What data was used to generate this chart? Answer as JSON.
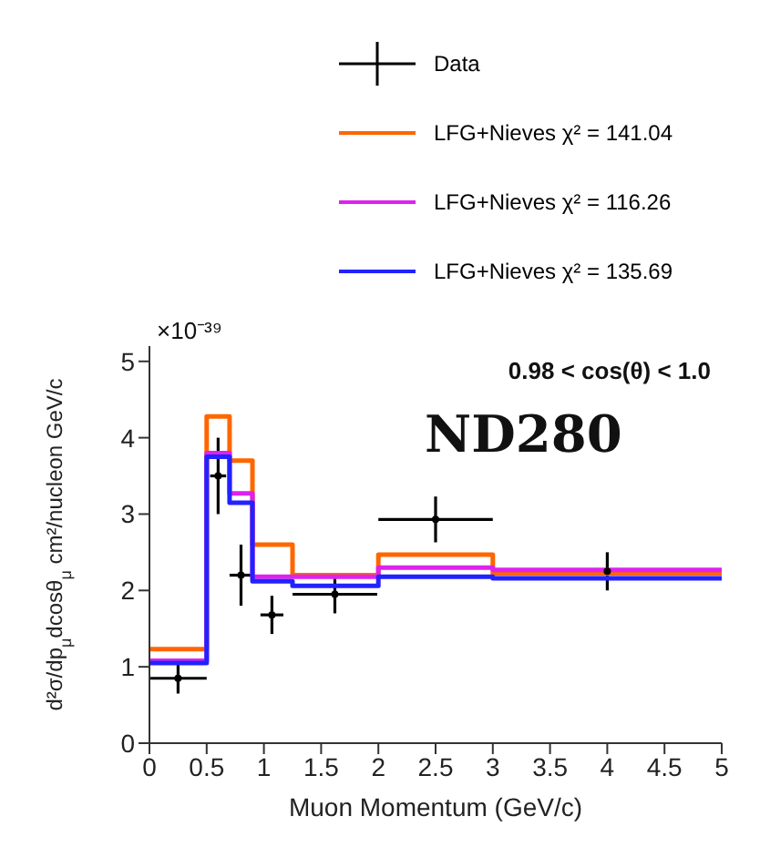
{
  "chart_data": {
    "type": "step",
    "xlabel": "Muon Momentum (GeV/c)",
    "ylabel": "d²σ/dp$_{μ}$dcosθ$_{μ}$ cm²/nucleon GeV/c",
    "annotations": [
      "×10⁻³⁹",
      "0.98 < cos(θ) < 1.0",
      "ND280"
    ],
    "xlim": [
      0,
      5
    ],
    "xticks": [
      0,
      0.5,
      1,
      1.5,
      2,
      2.5,
      3,
      3.5,
      4,
      4.5,
      5
    ],
    "ylim": [
      0,
      5.2
    ],
    "yticks": [
      0,
      1,
      2,
      3,
      4,
      5
    ],
    "legend": "top right",
    "grid": false,
    "series": [
      {
        "name": "Data",
        "type": "scatter",
        "marker": "circle",
        "color": "#000000",
        "x": [
          0.25,
          0.6,
          0.8,
          1.07,
          1.62,
          2.5,
          4
        ],
        "values": [
          0.85,
          3.5,
          2.2,
          1.68,
          1.95,
          2.93,
          2.25
        ],
        "errors": [
          0.2,
          0.5,
          0.4,
          0.25,
          0.25,
          0.3,
          0.25
        ],
        "xerrors": [
          0.25,
          0.07,
          0.1,
          0.1,
          0.37,
          0.5,
          null
        ]
      },
      {
        "name": "LFG+Nieves χ² = 141.04",
        "color": "#ff6600",
        "x": [
          0,
          0.5,
          0.7,
          0.9,
          1.25,
          2,
          3,
          5
        ],
        "values": [
          1.23,
          4.28,
          3.7,
          2.6,
          2.2,
          2.47,
          2.22,
          2.22
        ]
      },
      {
        "name": "LFG+Nieves χ² = 116.26",
        "color": "#dd22ee",
        "x": [
          0,
          0.5,
          0.7,
          0.9,
          1.25,
          2,
          3,
          5
        ],
        "values": [
          1.08,
          3.8,
          3.27,
          2.18,
          2.18,
          2.3,
          2.27,
          2.27
        ]
      },
      {
        "name": "LFG+Nieves χ² = 135.69",
        "color": "#2222ff",
        "x": [
          0,
          0.5,
          0.7,
          0.9,
          1.25,
          2,
          3,
          5
        ],
        "values": [
          1.05,
          3.75,
          3.15,
          2.12,
          2.06,
          2.18,
          2.16,
          2.16
        ]
      }
    ]
  }
}
